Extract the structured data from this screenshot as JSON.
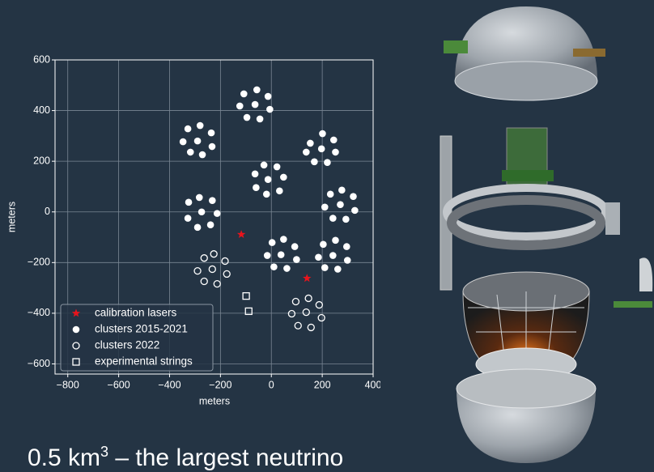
{
  "chart_data": {
    "type": "scatter",
    "xlabel": "meters",
    "ylabel": "meters",
    "xlim": [
      -850,
      400
    ],
    "ylim": [
      -640,
      600
    ],
    "xticks": [
      {
        "value": -800,
        "label": "−800"
      },
      {
        "value": -600,
        "label": "−600"
      },
      {
        "value": -400,
        "label": "−400"
      },
      {
        "value": -200,
        "label": "−200"
      },
      0,
      200,
      400
    ],
    "yticks": [
      {
        "value": -600,
        "label": "−600"
      },
      {
        "value": -400,
        "label": "−400"
      },
      {
        "value": -200,
        "label": "−200"
      },
      0,
      200,
      400,
      600
    ],
    "grid": true,
    "legend": "lower left",
    "series": [
      {
        "name": "calibration lasers",
        "marker": "star",
        "color": "#e8141c",
        "x": [
          -118,
          140
        ],
        "y": [
          -89,
          -262
        ]
      },
      {
        "name": "clusters 2015-2021",
        "marker": "circle",
        "color": "#ffffff",
        "x": [
          -108,
          -57,
          -13,
          -124,
          -64,
          -6,
          -96,
          -45,
          -328,
          -280,
          -236,
          -347,
          -290,
          -233,
          -318,
          -271,
          153,
          201,
          245,
          137,
          197,
          252,
          169,
          220,
          -64,
          -29,
          22,
          48,
          -13,
          -60,
          -19,
          32,
          -325,
          -283,
          -232,
          -213,
          -274,
          -328,
          -290,
          -239,
          232,
          277,
          322,
          328,
          271,
          210,
          242,
          293,
          3,
          48,
          92,
          -16,
          38,
          99,
          10,
          61,
          204,
          252,
          296,
          185,
          242,
          299,
          210,
          261
        ],
        "y": [
          466,
          482,
          456,
          418,
          424,
          405,
          373,
          367,
          328,
          341,
          312,
          277,
          280,
          258,
          236,
          226,
          271,
          309,
          284,
          236,
          249,
          236,
          198,
          195,
          150,
          185,
          178,
          137,
          128,
          96,
          70,
          83,
          38,
          57,
          45,
          -6,
          0,
          -25,
          -61,
          -51,
          70,
          86,
          61,
          6,
          29,
          19,
          -25,
          -29,
          -121,
          -108,
          -137,
          -172,
          -169,
          -188,
          -217,
          -223,
          -128,
          -112,
          -137,
          -179,
          -172,
          -191,
          -220,
          -226
        ]
      },
      {
        "name": "clusters 2022",
        "marker": "open-circle",
        "color": "#ffffff",
        "x": [
          -264,
          -226,
          -182,
          -290,
          -232,
          -175,
          -264,
          -213,
          96,
          146,
          188,
          80,
          137,
          197,
          105,
          156
        ],
        "y": [
          -182,
          -166,
          -194,
          -233,
          -226,
          -245,
          -274,
          -284,
          -354,
          -341,
          -367,
          -402,
          -396,
          -418,
          -449,
          -456
        ]
      },
      {
        "name": "experimental strings",
        "marker": "square",
        "color": "#ffffff",
        "x": [
          -99,
          -89
        ],
        "y": [
          -332,
          -392
        ]
      }
    ]
  },
  "caption": {
    "text": "0.5 km",
    "superscript": "3",
    "rest": " – the largest neutrino"
  }
}
